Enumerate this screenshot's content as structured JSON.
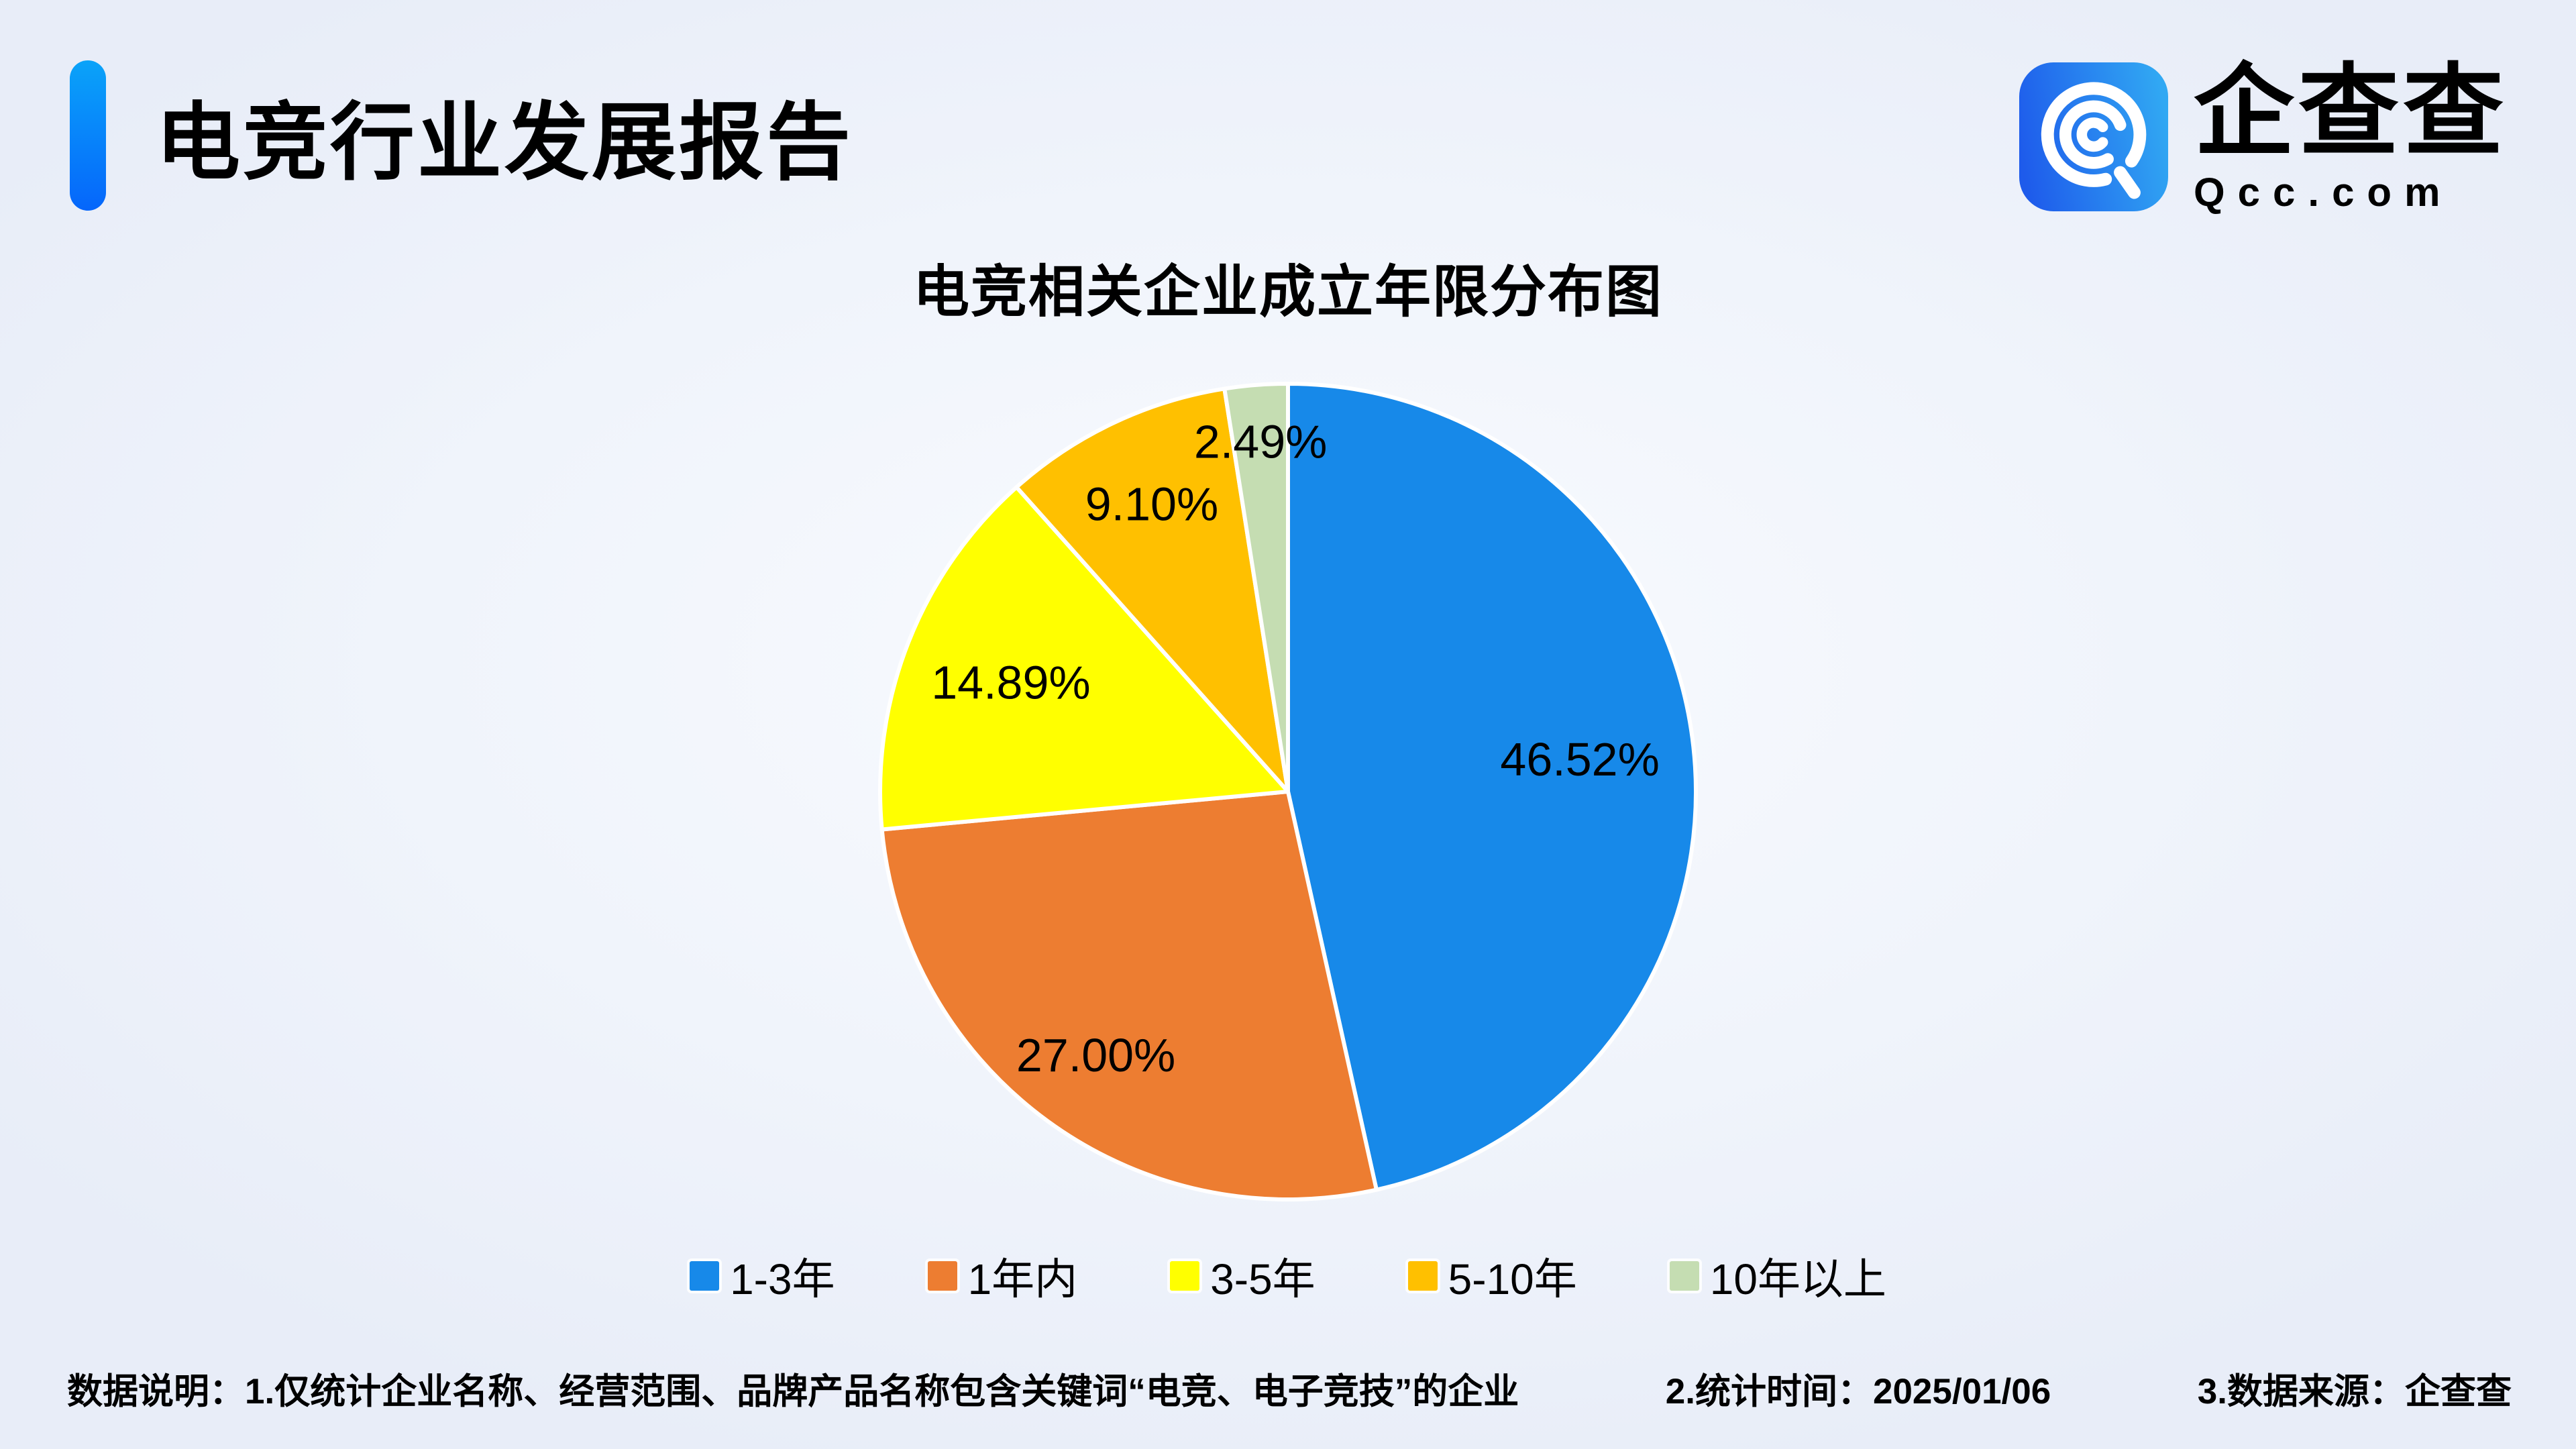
{
  "header": {
    "report_title": "电竞行业发展报告"
  },
  "logo": {
    "brand_name": "企查查",
    "brand_domain": "Qcc.com"
  },
  "chart_data": {
    "type": "pie",
    "title": "电竞相关企业成立年限分布图",
    "value_unit": "%",
    "start_angle": "top",
    "direction": "clockwise",
    "legend_position": "bottom",
    "labels_inside": true,
    "segments": [
      {
        "label": "1-3年",
        "value": 46.52,
        "display_value": "46.52%",
        "color": "#1789E9"
      },
      {
        "label": "1年内",
        "value": 27.0,
        "display_value": "27.00%",
        "color": "#ED7D31"
      },
      {
        "label": "3-5年",
        "value": 14.89,
        "display_value": "14.89%",
        "color": "#FFFF00"
      },
      {
        "label": "5-10年",
        "value": 9.1,
        "display_value": "9.10%",
        "color": "#FFC000"
      },
      {
        "label": "10年以上",
        "value": 2.49,
        "display_value": "2.49%",
        "color": "#C5DDB2"
      }
    ]
  },
  "footer": {
    "notes": [
      "数据说明：1.仅统计企业名称、经营范围、品牌产品名称包含关键词“电竞、电子竞技”的企业",
      "2.统计时间：2025/01/06",
      "3.数据来源：企查查"
    ]
  },
  "colors": {
    "accent_bar_top": "#0AA3F9",
    "accent_bar_bottom": "#0566FB",
    "logo_gradient_start": "#1E5BEB",
    "logo_gradient_end": "#31A8F3",
    "background_center": "#F9FBFF",
    "background_edge": "#E8EDF8",
    "text": "#000000",
    "slice_border": "#FFFFFF"
  }
}
